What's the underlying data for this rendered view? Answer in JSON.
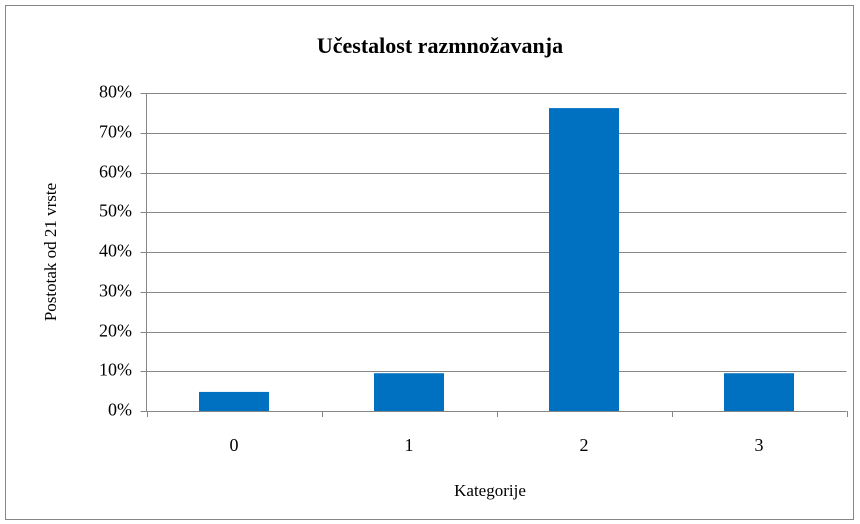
{
  "chart_data": {
    "type": "bar",
    "title": "Učestalost razmnožavanja",
    "x_label": "Kategorije",
    "y_label": "Postotak od 21 vrste",
    "categories": [
      "0",
      "1",
      "2",
      "3"
    ],
    "values": [
      4.8,
      9.5,
      76.2,
      9.5
    ],
    "color": "#0070c0",
    "ylim": [
      0,
      80
    ],
    "yticks": [
      {
        "value": 0,
        "label": "0%"
      },
      {
        "value": 10,
        "label": "10%"
      },
      {
        "value": 20,
        "label": "20%"
      },
      {
        "value": 30,
        "label": "30%"
      },
      {
        "value": 40,
        "label": "40%"
      },
      {
        "value": 50,
        "label": "50%"
      },
      {
        "value": 60,
        "label": "60%"
      },
      {
        "value": 70,
        "label": "70%"
      },
      {
        "value": 80,
        "label": "80%"
      }
    ],
    "grid": true
  }
}
